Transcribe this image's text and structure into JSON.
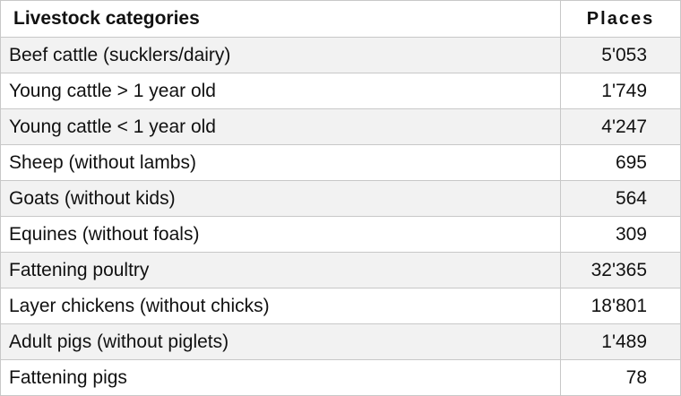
{
  "table": {
    "headers": {
      "category": "Livestock categories",
      "places": "Places"
    },
    "rows": [
      {
        "category": "Beef cattle (sucklers/dairy)",
        "places": "5'053"
      },
      {
        "category": "Young cattle > 1 year old",
        "places": "1'749"
      },
      {
        "category": "Young cattle < 1 year old",
        "places": "4'247"
      },
      {
        "category": "Sheep (without lambs)",
        "places": "695"
      },
      {
        "category": "Goats (without kids)",
        "places": "564"
      },
      {
        "category": "Equines (without foals)",
        "places": "309"
      },
      {
        "category": "Fattening poultry",
        "places": "32'365"
      },
      {
        "category": "Layer chickens (without chicks)",
        "places": "18'801"
      },
      {
        "category": "Adult pigs (without piglets)",
        "places": "1'489"
      },
      {
        "category": "Fattening pigs",
        "places": "78"
      }
    ]
  },
  "colors": {
    "row_shade": "#f2f2f2",
    "row_plain": "#ffffff",
    "border": "#c8c8c8"
  }
}
